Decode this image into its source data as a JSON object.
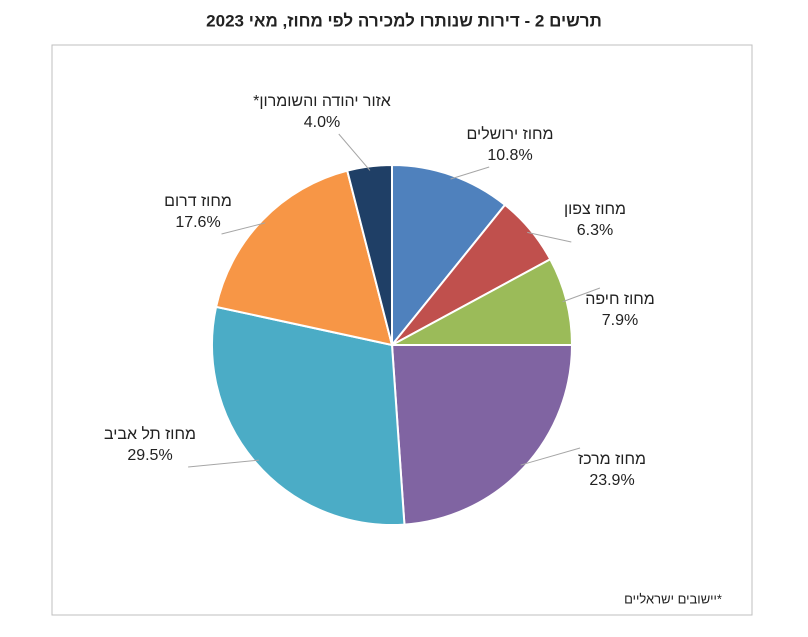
{
  "chart_data": {
    "type": "pie",
    "title": "תרשים 2 - דירות שנותרו למכירה לפי מחוז, מאי 2023",
    "categories": [
      "מחוז ירושלים",
      "מחוז צפון",
      "מחוז חיפה",
      "מחוז מרכז",
      "מחוז תל אביב",
      "מחוז דרום",
      "אזור יהודה והשומרון*"
    ],
    "values": [
      10.8,
      6.3,
      7.9,
      23.9,
      29.5,
      17.6,
      4.0
    ],
    "value_labels": [
      "10.8%",
      "6.3%",
      "7.9%",
      "23.9%",
      "29.5%",
      "17.6%",
      "4.0%"
    ],
    "colors": [
      "#4f81bd",
      "#c0504d",
      "#9bbb59",
      "#8064a2",
      "#4bacc6",
      "#f79646",
      "#1f3f66"
    ],
    "footnote": "*יישובים ישראליים"
  }
}
